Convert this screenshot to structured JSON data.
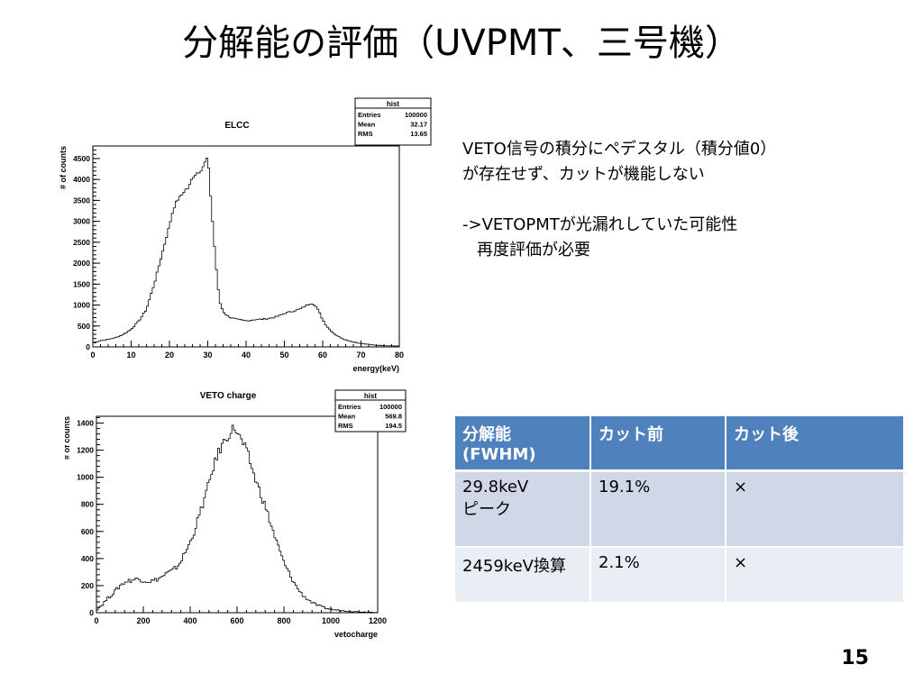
{
  "slide": {
    "title": "分解能の評価（UVPMT、三号機）",
    "page_number": "15"
  },
  "notes": {
    "line1": "VETO信号の積分にペデスタル（積分値0）",
    "line2": "が存在せず、カットが機能しない",
    "line3": "->VETOPMTが光漏れしていた可能性",
    "line4": "再度評価が必要"
  },
  "table": {
    "headers": [
      "分解能\n(FWHM)",
      "カット前",
      "カット後"
    ],
    "rows": [
      [
        "29.8keV\nピーク",
        "19.1%",
        "×"
      ],
      [
        "2459keV換算",
        "2.1%",
        "×"
      ]
    ]
  },
  "chart_data": [
    {
      "type": "histogram",
      "title": "ELCC",
      "xlabel": "energy(keV)",
      "ylabel": "# of counts",
      "xlim": [
        0,
        80
      ],
      "ylim": [
        0,
        4800
      ],
      "xticks": [
        0,
        10,
        20,
        30,
        40,
        50,
        60,
        70,
        80
      ],
      "yticks": [
        0,
        500,
        1000,
        1500,
        2000,
        2500,
        3000,
        3500,
        4000,
        4500
      ],
      "stats": {
        "name": "hist",
        "entries": "100000",
        "mean": "32.17",
        "rms": "13.65"
      },
      "x": [
        0,
        2,
        4,
        6,
        8,
        10,
        12,
        14,
        16,
        18,
        20,
        21,
        22,
        23,
        24,
        25,
        26,
        27,
        28,
        29,
        30,
        31,
        32,
        33,
        34,
        35,
        36,
        38,
        40,
        42,
        44,
        46,
        48,
        50,
        52,
        54,
        56,
        57,
        58,
        59,
        60,
        61,
        62,
        63,
        64,
        66,
        68,
        70,
        72,
        74,
        76,
        78,
        80
      ],
      "values": [
        100,
        150,
        180,
        220,
        300,
        420,
        620,
        900,
        1500,
        2200,
        2900,
        3300,
        3500,
        3600,
        3750,
        3800,
        4050,
        4150,
        4200,
        4350,
        4550,
        3300,
        2100,
        1100,
        850,
        750,
        700,
        650,
        620,
        650,
        660,
        680,
        720,
        800,
        850,
        900,
        1000,
        1050,
        1000,
        850,
        650,
        500,
        400,
        320,
        250,
        170,
        120,
        80,
        60,
        40,
        30,
        25,
        20
      ]
    },
    {
      "type": "histogram",
      "title": "VETO charge",
      "xlabel": "vetocharge",
      "ylabel": "# of counts",
      "xlim": [
        0,
        1200
      ],
      "ylim": [
        0,
        1450
      ],
      "xticks": [
        0,
        200,
        400,
        600,
        800,
        1000,
        1200
      ],
      "yticks": [
        0,
        200,
        400,
        600,
        800,
        1000,
        1200,
        1400
      ],
      "stats": {
        "name": "hist",
        "entries": "100000",
        "mean": "569.8",
        "rms": "194.5"
      },
      "x": [
        0,
        25,
        50,
        75,
        100,
        125,
        150,
        175,
        200,
        225,
        250,
        275,
        300,
        325,
        350,
        375,
        400,
        425,
        450,
        475,
        500,
        525,
        550,
        575,
        590,
        600,
        625,
        650,
        675,
        700,
        725,
        750,
        775,
        800,
        825,
        850,
        875,
        900,
        925,
        950,
        975,
        1000,
        1050,
        1100,
        1150,
        1200
      ],
      "values": [
        20,
        60,
        110,
        150,
        200,
        230,
        240,
        250,
        240,
        230,
        240,
        260,
        290,
        310,
        350,
        430,
        520,
        640,
        780,
        920,
        1080,
        1200,
        1280,
        1340,
        1370,
        1330,
        1250,
        1150,
        1000,
        880,
        760,
        620,
        490,
        370,
        280,
        200,
        140,
        100,
        70,
        50,
        35,
        25,
        15,
        8,
        5,
        3
      ]
    }
  ]
}
